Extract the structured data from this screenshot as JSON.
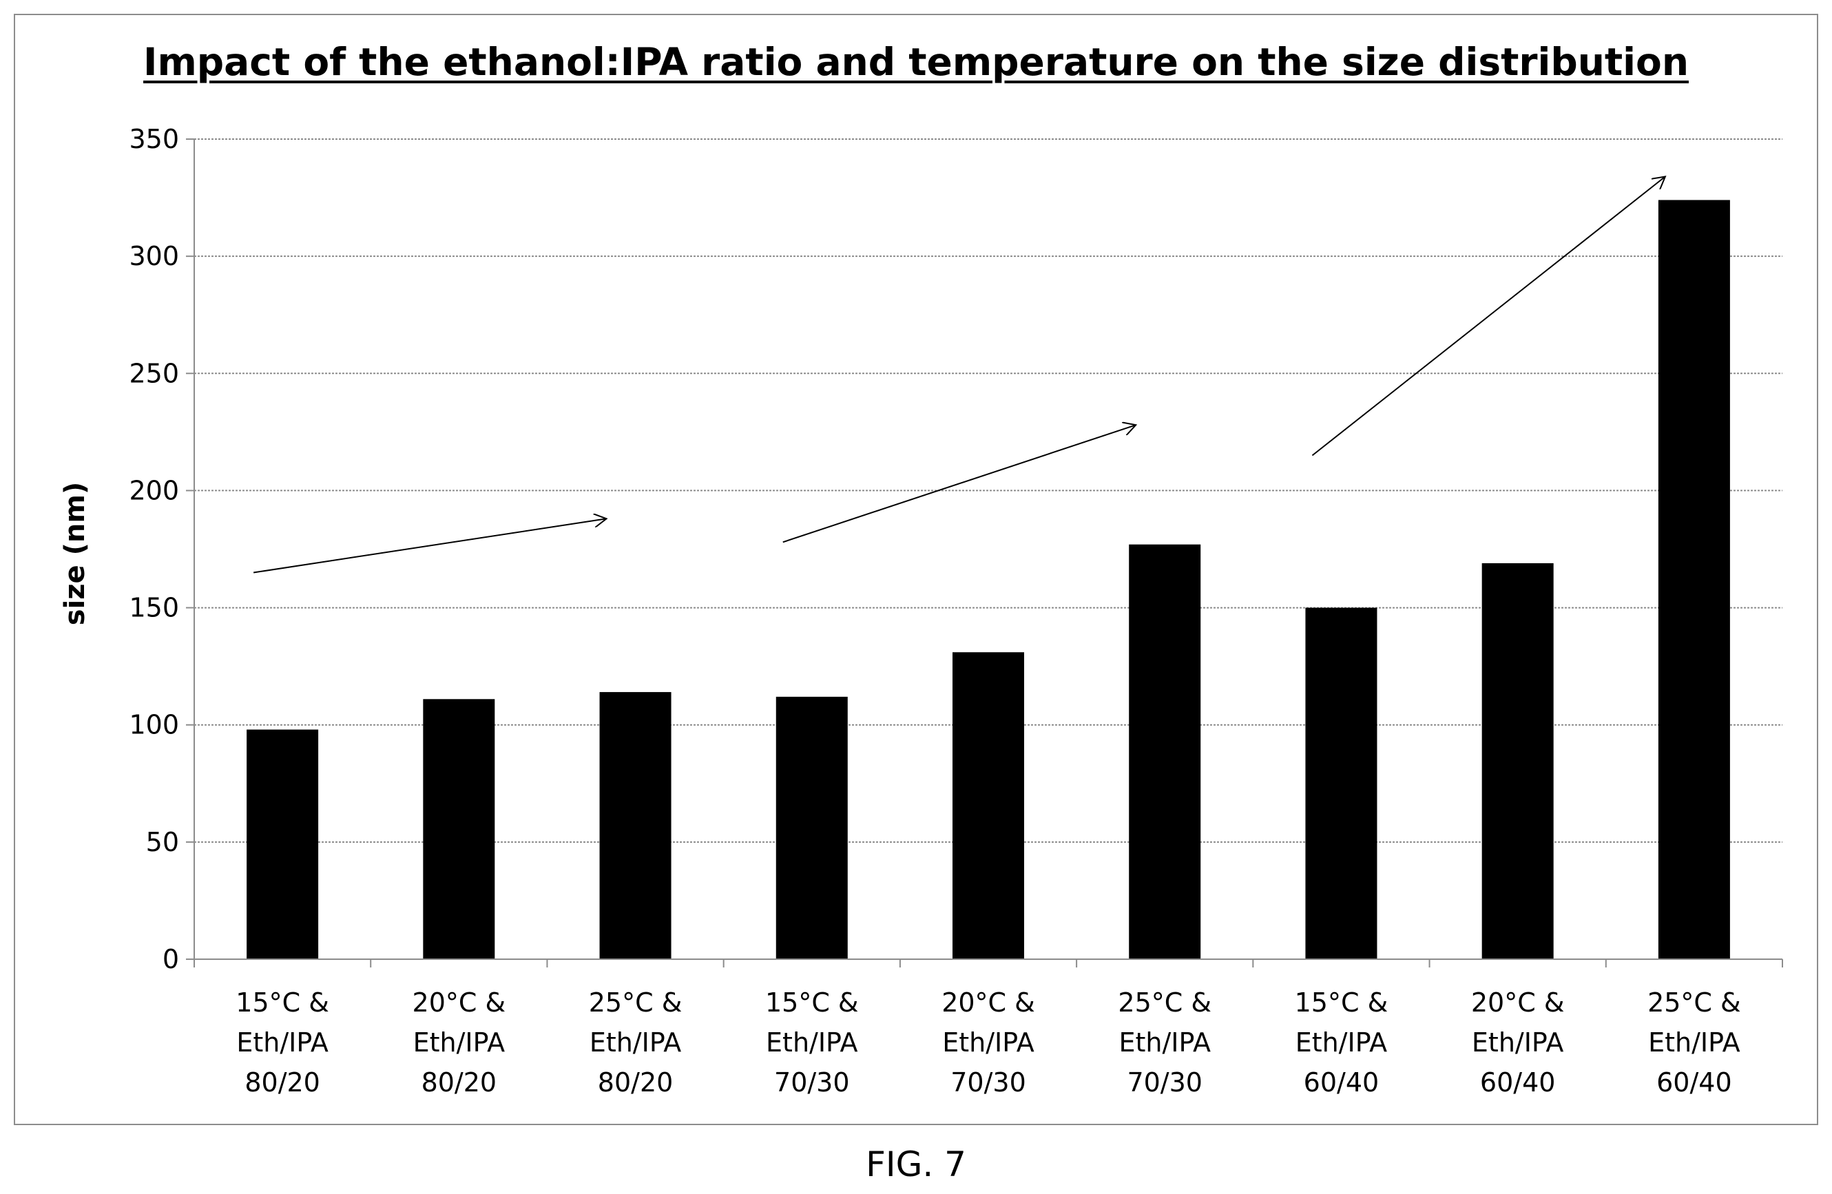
{
  "figure_caption": "FIG. 7",
  "colors": {
    "bar": "#000000",
    "gridline": "#8c8c8c",
    "axis": "#8c8c8c",
    "frame": "#8c8c8c"
  },
  "chart_data": {
    "type": "bar",
    "title": "Impact of the ethanol:IPA ratio and temperature on the size distribution",
    "xlabel": "",
    "ylabel": "size (nm)",
    "ylim": [
      0,
      350
    ],
    "yticks": [
      0,
      50,
      100,
      150,
      200,
      250,
      300,
      350
    ],
    "grid": true,
    "legend": "none",
    "categories": [
      [
        "15°C &",
        "Eth/IPA",
        "80/20"
      ],
      [
        "20°C &",
        "Eth/IPA",
        "80/20"
      ],
      [
        "25°C &",
        "Eth/IPA",
        "80/20"
      ],
      [
        "15°C &",
        "Eth/IPA",
        "70/30"
      ],
      [
        "20°C &",
        "Eth/IPA",
        "70/30"
      ],
      [
        "25°C &",
        "Eth/IPA",
        "70/30"
      ],
      [
        "15°C &",
        "Eth/IPA",
        "60/40"
      ],
      [
        "20°C &",
        "Eth/IPA",
        "60/40"
      ],
      [
        "25°C &",
        "Eth/IPA",
        "60/40"
      ]
    ],
    "values": [
      98,
      111,
      114,
      112,
      131,
      177,
      150,
      169,
      324
    ],
    "annotations": [
      {
        "type": "arrow",
        "from": [
          0.0,
          165
        ],
        "to": [
          2.0,
          188
        ]
      },
      {
        "type": "arrow",
        "from": [
          3.0,
          178
        ],
        "to": [
          5.0,
          228
        ]
      },
      {
        "type": "arrow",
        "from": [
          6.0,
          215
        ],
        "to": [
          8.0,
          334
        ]
      }
    ]
  }
}
